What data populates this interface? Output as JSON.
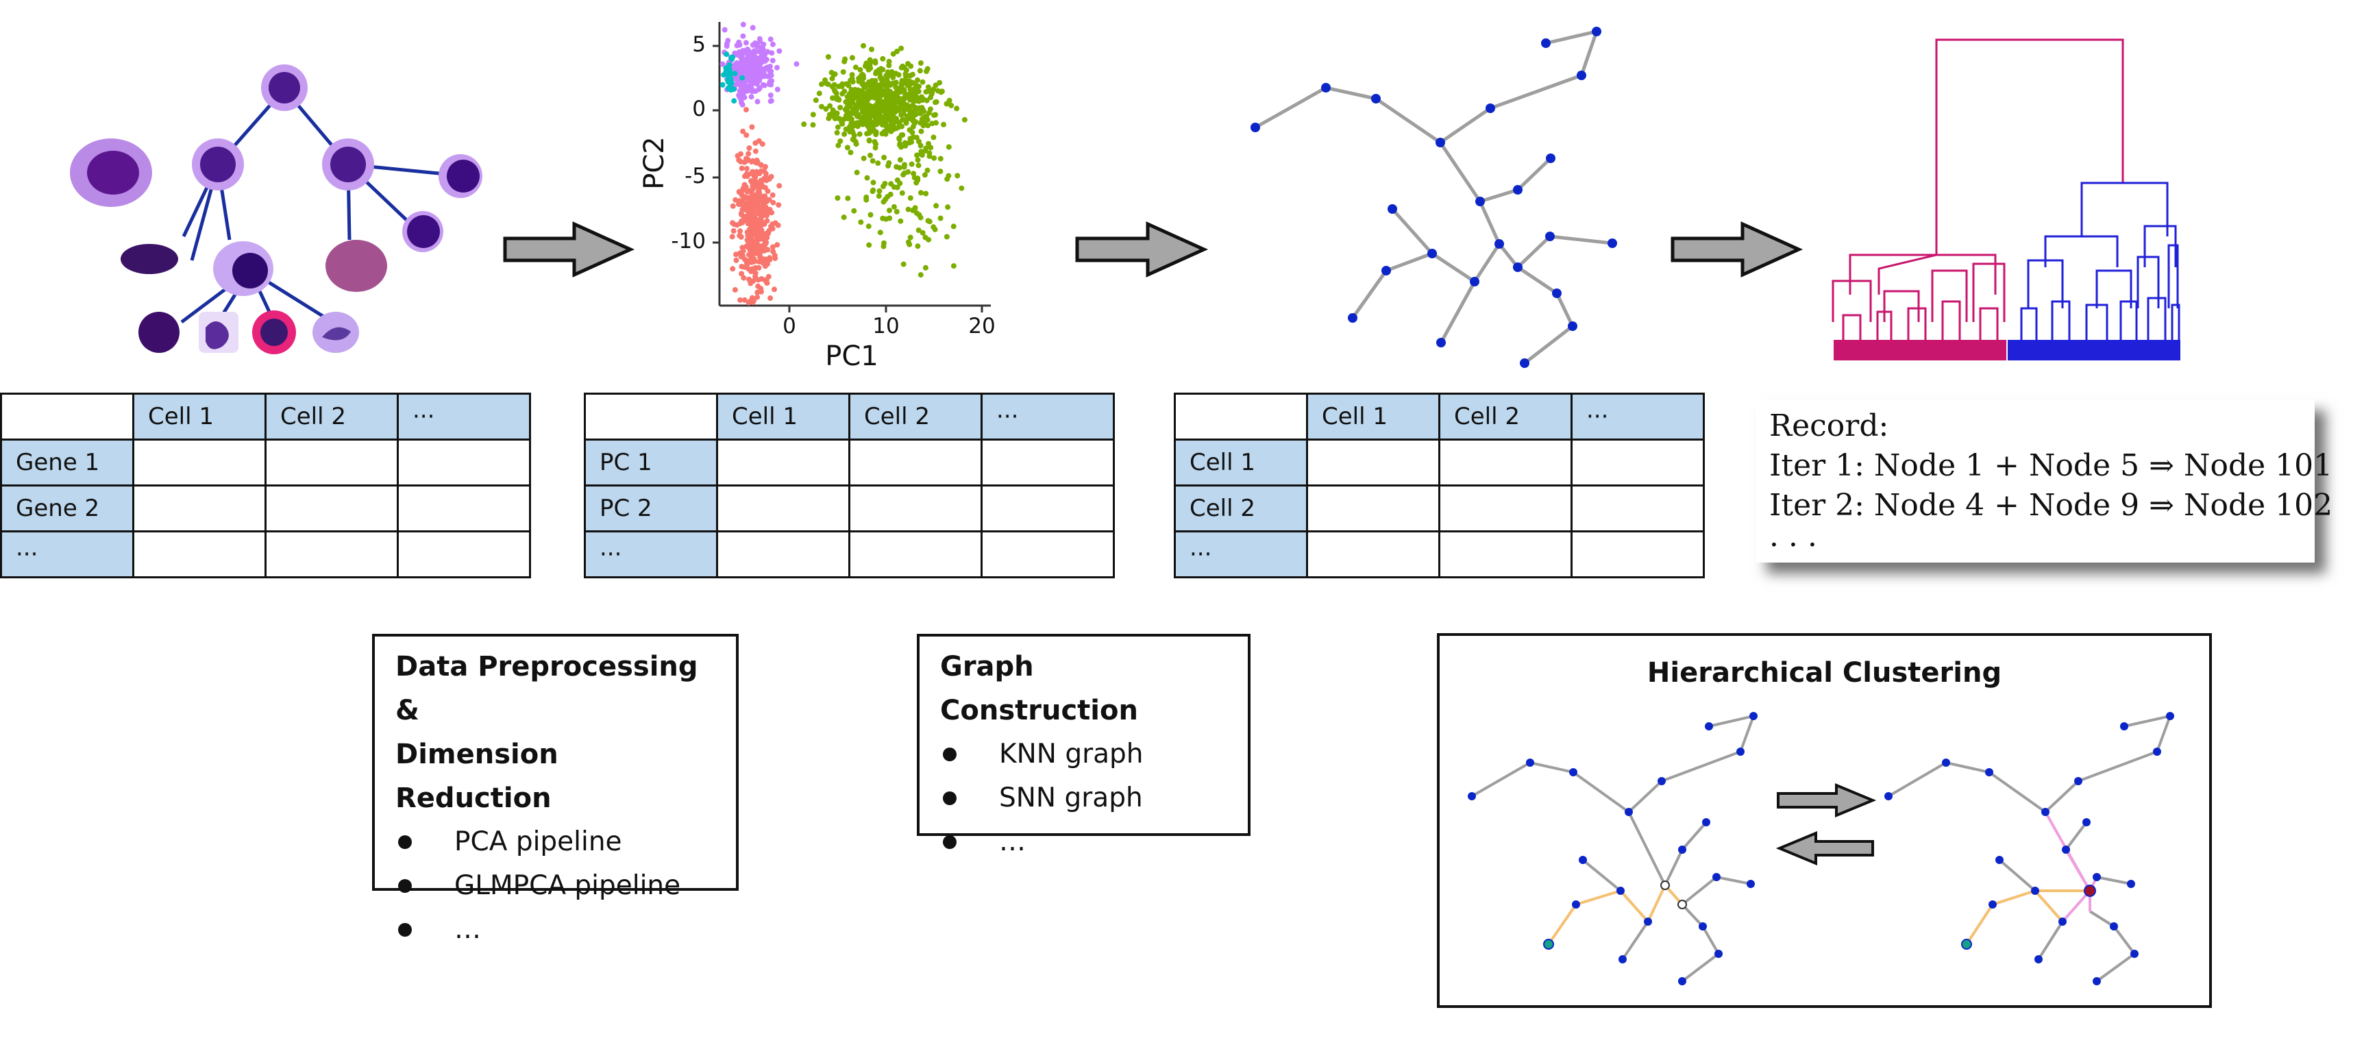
{
  "tables": [
    {
      "header": [
        "",
        "Cell 1",
        "Cell 2",
        "···"
      ],
      "rows": [
        [
          "Gene 1",
          "",
          "",
          ""
        ],
        [
          "Gene 2",
          "",
          "",
          ""
        ],
        [
          "···",
          "",
          "",
          ""
        ]
      ]
    },
    {
      "header": [
        "",
        "Cell 1",
        "Cell 2",
        "···"
      ],
      "rows": [
        [
          "PC 1",
          "",
          "",
          ""
        ],
        [
          "PC 2",
          "",
          "",
          ""
        ],
        [
          "···",
          "",
          "",
          ""
        ]
      ]
    },
    {
      "header": [
        "",
        "Cell 1",
        "Cell 2",
        "···"
      ],
      "rows": [
        [
          "Cell 1",
          "",
          "",
          ""
        ],
        [
          "Cell 2",
          "",
          "",
          ""
        ],
        [
          "···",
          "",
          "",
          ""
        ]
      ]
    }
  ],
  "boxes": {
    "preprocessing": {
      "title_line1": "Data Preprocessing &",
      "title_line2": "Dimension Reduction",
      "items": [
        "PCA pipeline",
        "GLMPCA pipeline",
        "…"
      ]
    },
    "graph": {
      "title": "Graph Construction",
      "items": [
        "KNN graph",
        "SNN graph",
        "…"
      ]
    },
    "clustering": {
      "title": "Hierarchical Clustering"
    }
  },
  "record": {
    "lines": [
      "Record:",
      "Iter 1: Node 1 + Node 5 ⇒ Node 101",
      "Iter 2: Node 4 + Node 9 ⇒ Node 102",
      "· · ·"
    ]
  },
  "chart_data": {
    "type": "scatter",
    "xlabel": "PC1",
    "ylabel": "PC2",
    "x_ticks": [
      0,
      10,
      20
    ],
    "y_ticks": [
      5,
      0,
      -5,
      -10
    ],
    "xlim": [
      -6,
      21
    ],
    "ylim": [
      -14,
      7
    ],
    "grid": false,
    "clusters": [
      {
        "color": "#c77cff",
        "center": [
          -3,
          3.5
        ],
        "spread": [
          1.2,
          1.0
        ],
        "count": 320
      },
      {
        "color": "#00bfc4",
        "center": [
          -5,
          3.0
        ],
        "spread": [
          0.4,
          0.8
        ],
        "count": 30
      },
      {
        "color": "#f8766d",
        "center": [
          -2.5,
          -8
        ],
        "spread": [
          0.9,
          3.0
        ],
        "count": 420
      },
      {
        "color": "#7cae00",
        "center": [
          10,
          1
        ],
        "spread": [
          2.6,
          1.4
        ],
        "count": 650
      },
      {
        "color": "#7cae00",
        "center": [
          13,
          -5
        ],
        "spread": [
          3.0,
          3.0
        ],
        "count": 130
      }
    ]
  },
  "colors": {
    "table_header": "#bdd7ee",
    "graph_node": "#0b25c9",
    "graph_edge": "#9e9e9e",
    "dendro_left": "#c8156e",
    "dendro_right": "#2020d8",
    "highlight_edge_orange": "#f5c070",
    "highlight_edge_pink": "#ef9fe0",
    "seed_node": "#16a085",
    "merged_node": "#a01028"
  },
  "icons": [
    "cell-lineage-icon",
    "arrow-right-icon",
    "arrow-left-icon",
    "knn-graph-icon",
    "dendrogram-icon"
  ]
}
